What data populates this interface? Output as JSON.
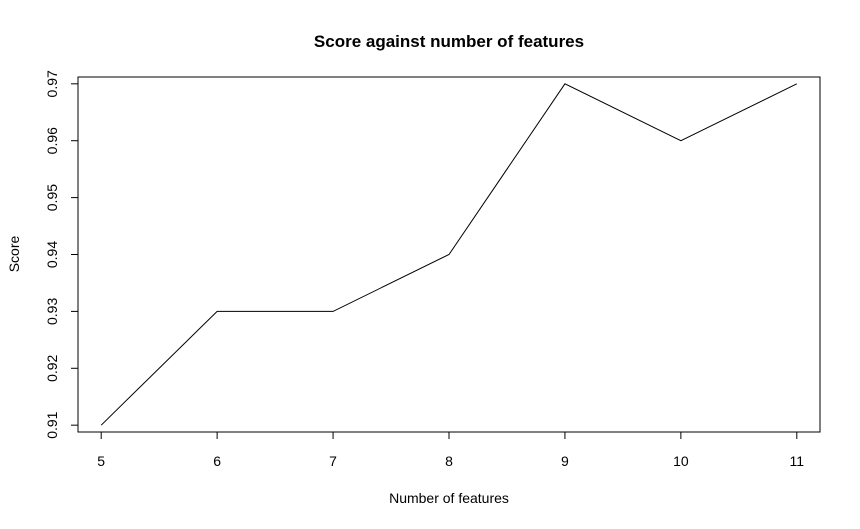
{
  "chart_data": {
    "type": "line",
    "title": "Score against number of features",
    "xlabel": "Number of features",
    "ylabel": "Score",
    "x": [
      5,
      6,
      7,
      8,
      9,
      10,
      11
    ],
    "series": [
      {
        "values": [
          0.91,
          0.93,
          0.93,
          0.94,
          0.97,
          0.96,
          0.97
        ],
        "color": "#000000"
      }
    ],
    "xlim": [
      4.8,
      11.2
    ],
    "ylim": [
      0.9088,
      0.9712
    ],
    "xticks": [
      "5",
      "6",
      "7",
      "8",
      "9",
      "10",
      "11"
    ],
    "yticks": [
      "0.91",
      "0.92",
      "0.93",
      "0.94",
      "0.95",
      "0.96",
      "0.97"
    ],
    "grid": false,
    "legend": "none"
  }
}
